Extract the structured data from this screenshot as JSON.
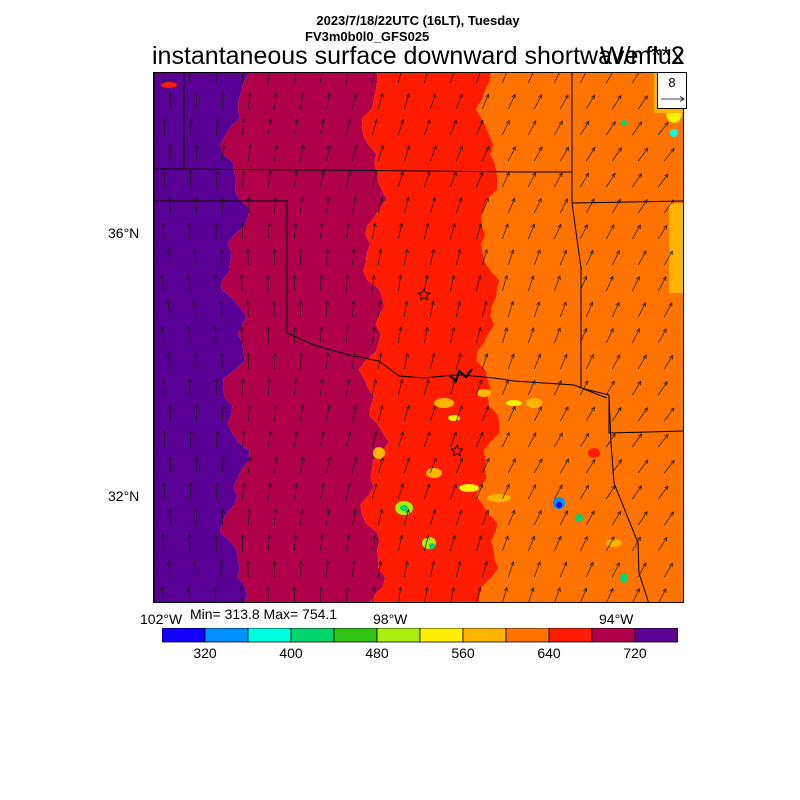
{
  "header": {
    "datetime": "2023/7/18/22UTC (16LT), Tuesday",
    "model": "FV3m0b0l0_GFS025",
    "title": "instantaneous surface downward shortwave flux",
    "units": "W/m**2"
  },
  "reference_vector": {
    "label": "8"
  },
  "axes": {
    "lat_labels": [
      "36°N",
      "32°N"
    ],
    "lon_labels": [
      "102°W",
      "98°W",
      "94°W"
    ]
  },
  "stats": {
    "text": "Min= 313.8 Max= 754.1",
    "min": 313.8,
    "max": 754.1
  },
  "colorbar": {
    "colors": [
      "#1400ff",
      "#0090ff",
      "#00ffe1",
      "#00d46f",
      "#31c214",
      "#a9ee0c",
      "#ffef00",
      "#ffb400",
      "#ff7300",
      "#ff1c00",
      "#b0004a",
      "#5b0094"
    ],
    "tick_labels": [
      "320",
      "400",
      "480",
      "560",
      "640",
      "720"
    ]
  },
  "chart_data": {
    "type": "heatmap",
    "variable": "instantaneous surface downward shortwave flux",
    "units": "W/m**2",
    "lat_range": [
      29.8,
      38.0
    ],
    "lon_range": [
      -102.0,
      -92.8
    ],
    "value_range": [
      313.8,
      754.1
    ],
    "bands_west_to_east": [
      {
        "lon_from": -102.0,
        "lon_to": -100.6,
        "value": 740,
        "color": "#5b0094"
      },
      {
        "lon_from": -100.6,
        "lon_to": -98.2,
        "value": 700,
        "color": "#b0004a"
      },
      {
        "lon_from": -98.2,
        "lon_to": -96.2,
        "value": 650,
        "color": "#ff1c00"
      },
      {
        "lon_from": -96.2,
        "lon_to": -92.8,
        "value": 610,
        "color": "#ff7300"
      }
    ]
  }
}
